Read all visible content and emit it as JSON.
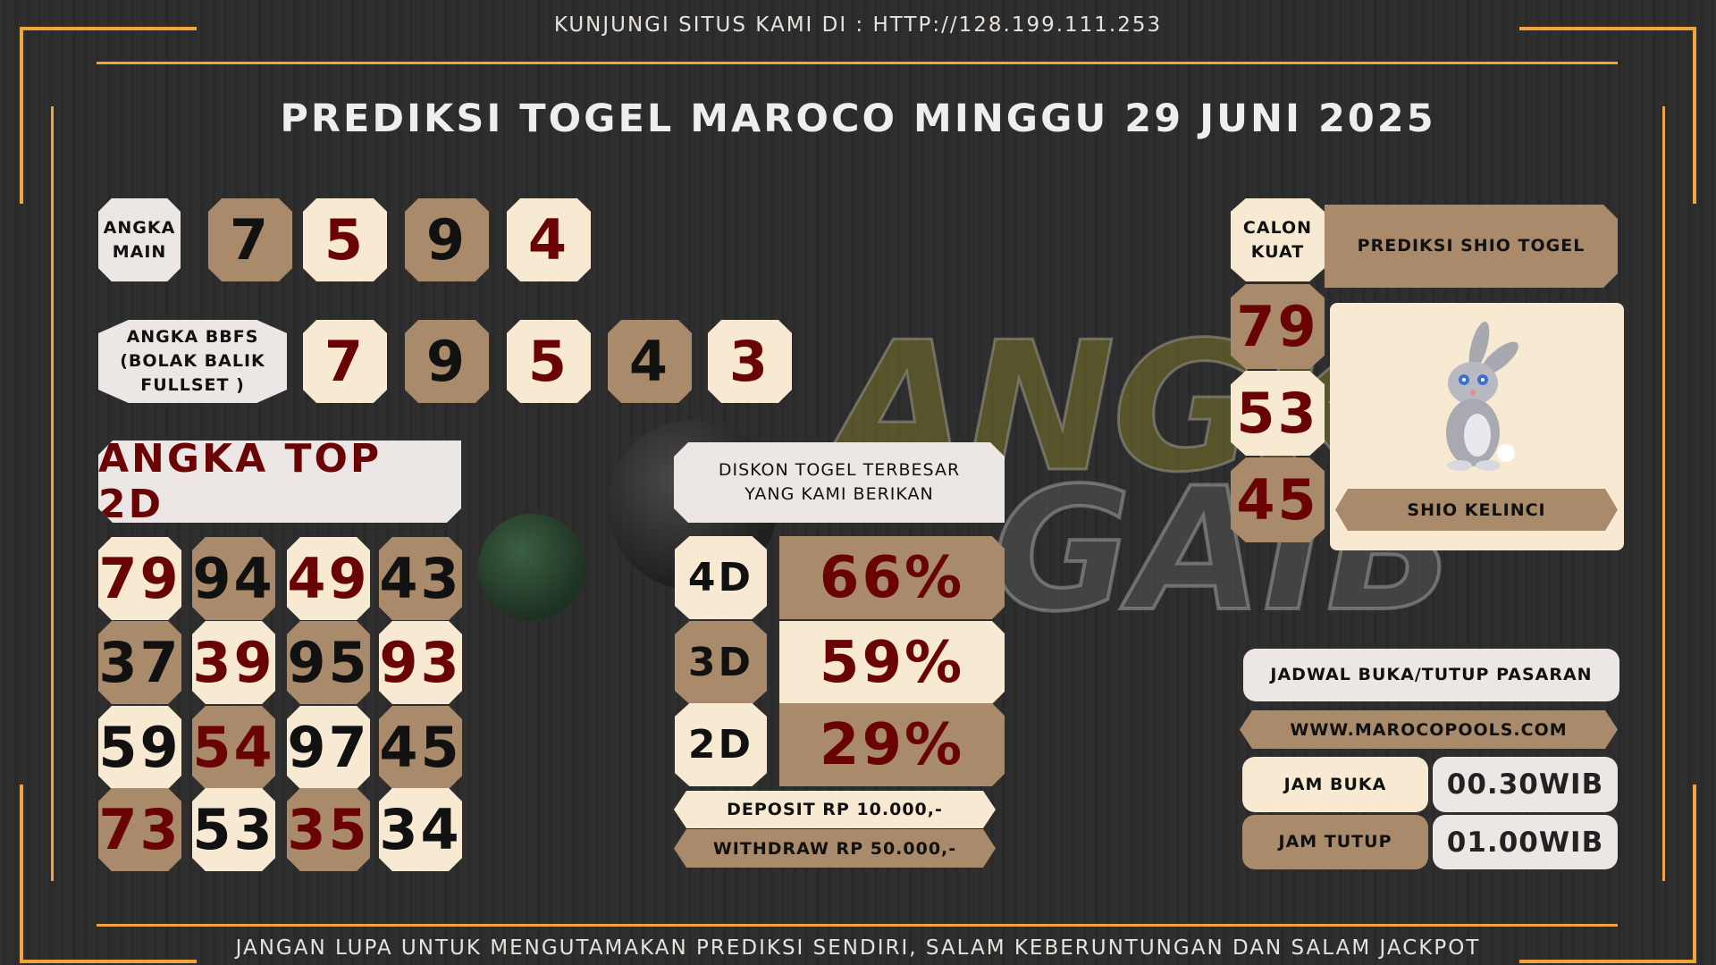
{
  "header": {
    "site_text": "KUNJUNGI SITUS KAMI DI : HTTP://128.199.111.253",
    "title": "PREDIKSI TOGEL MAROCO MINGGU 29 JUNI 2025"
  },
  "footer": {
    "text": "JANGAN LUPA UNTUK MENGUTAMAKAN PREDIKSI SENDIRI, SALAM KEBERUNTUNGAN DAN SALAM JACKPOT"
  },
  "watermark": {
    "line1": "ANGKA",
    "line2": "GAIB"
  },
  "colors": {
    "accent": "#f2a43a",
    "cream": "#f8e9d2",
    "tan": "#a98a6a",
    "dark_red": "#6a0404",
    "background": "#2c2c2c"
  },
  "angka_main": {
    "label_1": "ANGKA",
    "label_2": "MAIN",
    "digits": [
      {
        "v": "7",
        "bg": "tan",
        "c": "black"
      },
      {
        "v": "5",
        "bg": "cream",
        "c": "red"
      },
      {
        "v": "9",
        "bg": "tan",
        "c": "black"
      },
      {
        "v": "4",
        "bg": "cream",
        "c": "red"
      }
    ]
  },
  "bbfs": {
    "label_1": "ANGKA BBFS",
    "label_2": "(BOLAK BALIK",
    "label_3": "FULLSET )",
    "digits": [
      {
        "v": "7",
        "bg": "cream",
        "c": "red"
      },
      {
        "v": "9",
        "bg": "tan",
        "c": "black"
      },
      {
        "v": "5",
        "bg": "cream",
        "c": "red"
      },
      {
        "v": "4",
        "bg": "tan",
        "c": "black"
      },
      {
        "v": "3",
        "bg": "cream",
        "c": "red"
      }
    ]
  },
  "top2d": {
    "title": "ANGKA TOP 2D",
    "grid": [
      [
        {
          "v": "79",
          "bg": "cream",
          "c": "red"
        },
        {
          "v": "94",
          "bg": "tan",
          "c": "black"
        },
        {
          "v": "49",
          "bg": "cream",
          "c": "red"
        },
        {
          "v": "43",
          "bg": "tan",
          "c": "black"
        }
      ],
      [
        {
          "v": "37",
          "bg": "tan",
          "c": "black"
        },
        {
          "v": "39",
          "bg": "cream",
          "c": "red"
        },
        {
          "v": "95",
          "bg": "tan",
          "c": "black"
        },
        {
          "v": "93",
          "bg": "cream",
          "c": "red"
        }
      ],
      [
        {
          "v": "59",
          "bg": "cream",
          "c": "black"
        },
        {
          "v": "54",
          "bg": "tan",
          "c": "red"
        },
        {
          "v": "97",
          "bg": "cream",
          "c": "black"
        },
        {
          "v": "45",
          "bg": "tan",
          "c": "black"
        }
      ],
      [
        {
          "v": "73",
          "bg": "tan",
          "c": "red"
        },
        {
          "v": "53",
          "bg": "cream",
          "c": "black"
        },
        {
          "v": "35",
          "bg": "tan",
          "c": "red"
        },
        {
          "v": "34",
          "bg": "cream",
          "c": "black"
        }
      ]
    ]
  },
  "diskon": {
    "title_1": "DISKON TOGEL TERBESAR",
    "title_2": "YANG KAMI BERIKAN",
    "rows": [
      {
        "label": "4D",
        "value": "66%",
        "lbg": "cream",
        "vbg": "tan"
      },
      {
        "label": "3D",
        "value": "59%",
        "lbg": "tan",
        "vbg": "cream"
      },
      {
        "label": "2D",
        "value": "29%",
        "lbg": "cream",
        "vbg": "tan"
      }
    ],
    "deposit": "DEPOSIT RP 10.000,-",
    "withdraw": "WITHDRAW RP 50.000,-"
  },
  "calon": {
    "label_1": "CALON",
    "label_2": "KUAT",
    "numbers": [
      {
        "v": "79",
        "bg": "tan"
      },
      {
        "v": "53",
        "bg": "cream"
      },
      {
        "v": "45",
        "bg": "tan"
      }
    ]
  },
  "shio": {
    "header": "PREDIKSI SHIO TOGEL",
    "name": "SHIO KELINCI",
    "icon": "rabbit-icon"
  },
  "jadwal": {
    "title": "JADWAL BUKA/TUTUP PASARAN",
    "website": "WWW.MAROCOPOOLS.COM",
    "buka_label": "JAM BUKA",
    "buka_value": "00.30WIB",
    "tutup_label": "JAM TUTUP",
    "tutup_value": "01.00WIB"
  }
}
